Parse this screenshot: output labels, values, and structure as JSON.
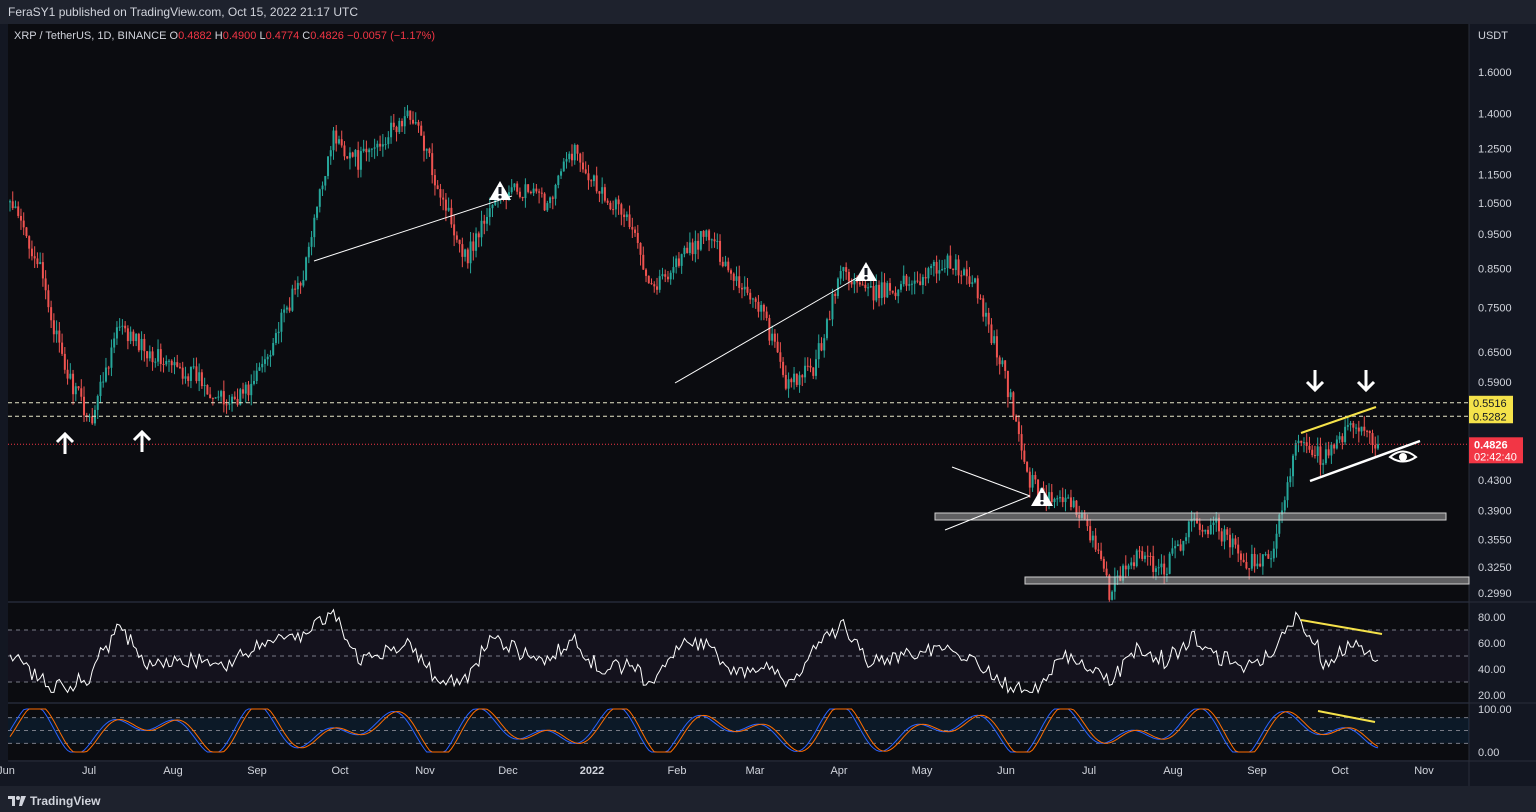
{
  "header": {
    "publish_text": "FeraSY1 published on TradingView.com, Oct 15, 2022 21:17 UTC"
  },
  "legend": {
    "symbol": "XRP / TetherUS, 1D, BINANCE",
    "o_label": "O",
    "o_value": "0.4882",
    "h_label": "H",
    "h_value": "0.4900",
    "l_label": "L",
    "l_value": "0.4774",
    "c_label": "C",
    "c_value": "0.4826",
    "change": "−0.0057 (−1.17%)"
  },
  "currency": "USDT",
  "footer": {
    "brand": "TradingView"
  },
  "colors": {
    "background": "#131722",
    "up": "#26a69a",
    "down": "#ef5350",
    "trendline_yellow": "#f5e24a",
    "last_price": "#f23645",
    "level_tag": "#f5e24a"
  },
  "chart_data": {
    "type": "candlestick",
    "symbol": "XRP / TetherUS",
    "timeframe": "1D",
    "y_scale": "log",
    "y_ticks": [
      1.6,
      1.4,
      1.25,
      1.15,
      1.05,
      0.95,
      0.85,
      0.75,
      0.65,
      0.59,
      0.43,
      0.39,
      0.355,
      0.325,
      0.299
    ],
    "y_tick_labels": [
      "1.6000",
      "1.4000",
      "1.2500",
      "1.1500",
      "1.0500",
      "0.9500",
      "0.8500",
      "0.7500",
      "0.6500",
      "0.5900",
      "0.4300",
      "0.3900",
      "0.3550",
      "0.3250",
      "0.2990"
    ],
    "x_labels": [
      "Jun",
      "Jul",
      "Aug",
      "Sep",
      "Oct",
      "Nov",
      "Dec",
      "2022",
      "Feb",
      "Mar",
      "Apr",
      "May",
      "Jun",
      "Jul",
      "Aug",
      "Sep",
      "Oct",
      "Nov"
    ],
    "last_price": {
      "value": 0.4826,
      "label": "0.4826",
      "countdown": "02:42:40"
    },
    "levels": [
      {
        "value": 0.5516,
        "label": "0.5516"
      },
      {
        "value": 0.5282,
        "label": "0.5282"
      }
    ],
    "price_anchors": [
      [
        "Jun",
        1.05
      ],
      [
        "Jun",
        0.88
      ],
      [
        "Jun",
        0.62
      ],
      [
        "Jun",
        0.52
      ],
      [
        "Jun",
        0.7
      ],
      [
        "Jun",
        0.66
      ],
      [
        "Jul",
        0.62
      ],
      [
        "Jul",
        0.6
      ],
      [
        "Jul",
        0.55
      ],
      [
        "Jul",
        0.58
      ],
      [
        "Jul",
        0.7
      ],
      [
        "Aug",
        0.85
      ],
      [
        "Aug",
        1.3
      ],
      [
        "Aug",
        1.2
      ],
      [
        "Sep",
        1.3
      ],
      [
        "Sep",
        1.4
      ],
      [
        "Sep",
        1.1
      ],
      [
        "Oct",
        0.88
      ],
      [
        "Oct",
        1.05
      ],
      [
        "Oct",
        1.1
      ],
      [
        "Nov",
        1.05
      ],
      [
        "Nov",
        1.25
      ],
      [
        "Nov",
        1.1
      ],
      [
        "Dec",
        1.0
      ],
      [
        "Dec",
        0.8
      ],
      [
        "Dec",
        0.88
      ],
      [
        "Dec",
        0.95
      ],
      [
        "2022",
        0.83
      ],
      [
        "2022",
        0.75
      ],
      [
        "Feb",
        0.58
      ],
      [
        "Feb",
        0.62
      ],
      [
        "Feb",
        0.85
      ],
      [
        "Mar",
        0.78
      ],
      [
        "Mar",
        0.8
      ],
      [
        "Mar",
        0.83
      ],
      [
        "Apr",
        0.87
      ],
      [
        "Apr",
        0.8
      ],
      [
        "May",
        0.62
      ],
      [
        "May",
        0.43
      ],
      [
        "May",
        0.4
      ],
      [
        "Jun",
        0.39
      ],
      [
        "Jun",
        0.3
      ],
      [
        "Jul",
        0.34
      ],
      [
        "Jul",
        0.32
      ],
      [
        "Aug",
        0.37
      ],
      [
        "Aug",
        0.37
      ],
      [
        "Sep",
        0.33
      ],
      [
        "Sep",
        0.33
      ],
      [
        "Sep",
        0.5
      ],
      [
        "Oct",
        0.46
      ],
      [
        "Oct",
        0.51
      ],
      [
        "Oct",
        0.4826
      ]
    ],
    "rsi": {
      "y_ticks": [
        80,
        60,
        40,
        20
      ],
      "y_tick_labels": [
        "80.00",
        "60.00",
        "40.00",
        "20.00"
      ],
      "bands": [
        70,
        50,
        30
      ]
    },
    "stoch_rsi": {
      "y_ticks": [
        100,
        0
      ],
      "y_tick_labels": [
        "100.00",
        "0.00"
      ],
      "bands": [
        80,
        50,
        20
      ]
    },
    "grid": false,
    "annotations": [
      "support-arrows",
      "resistance-arrows",
      "warning-triangles",
      "trendlines",
      "support-zones",
      "eye-marker",
      "divergence-lines"
    ]
  }
}
